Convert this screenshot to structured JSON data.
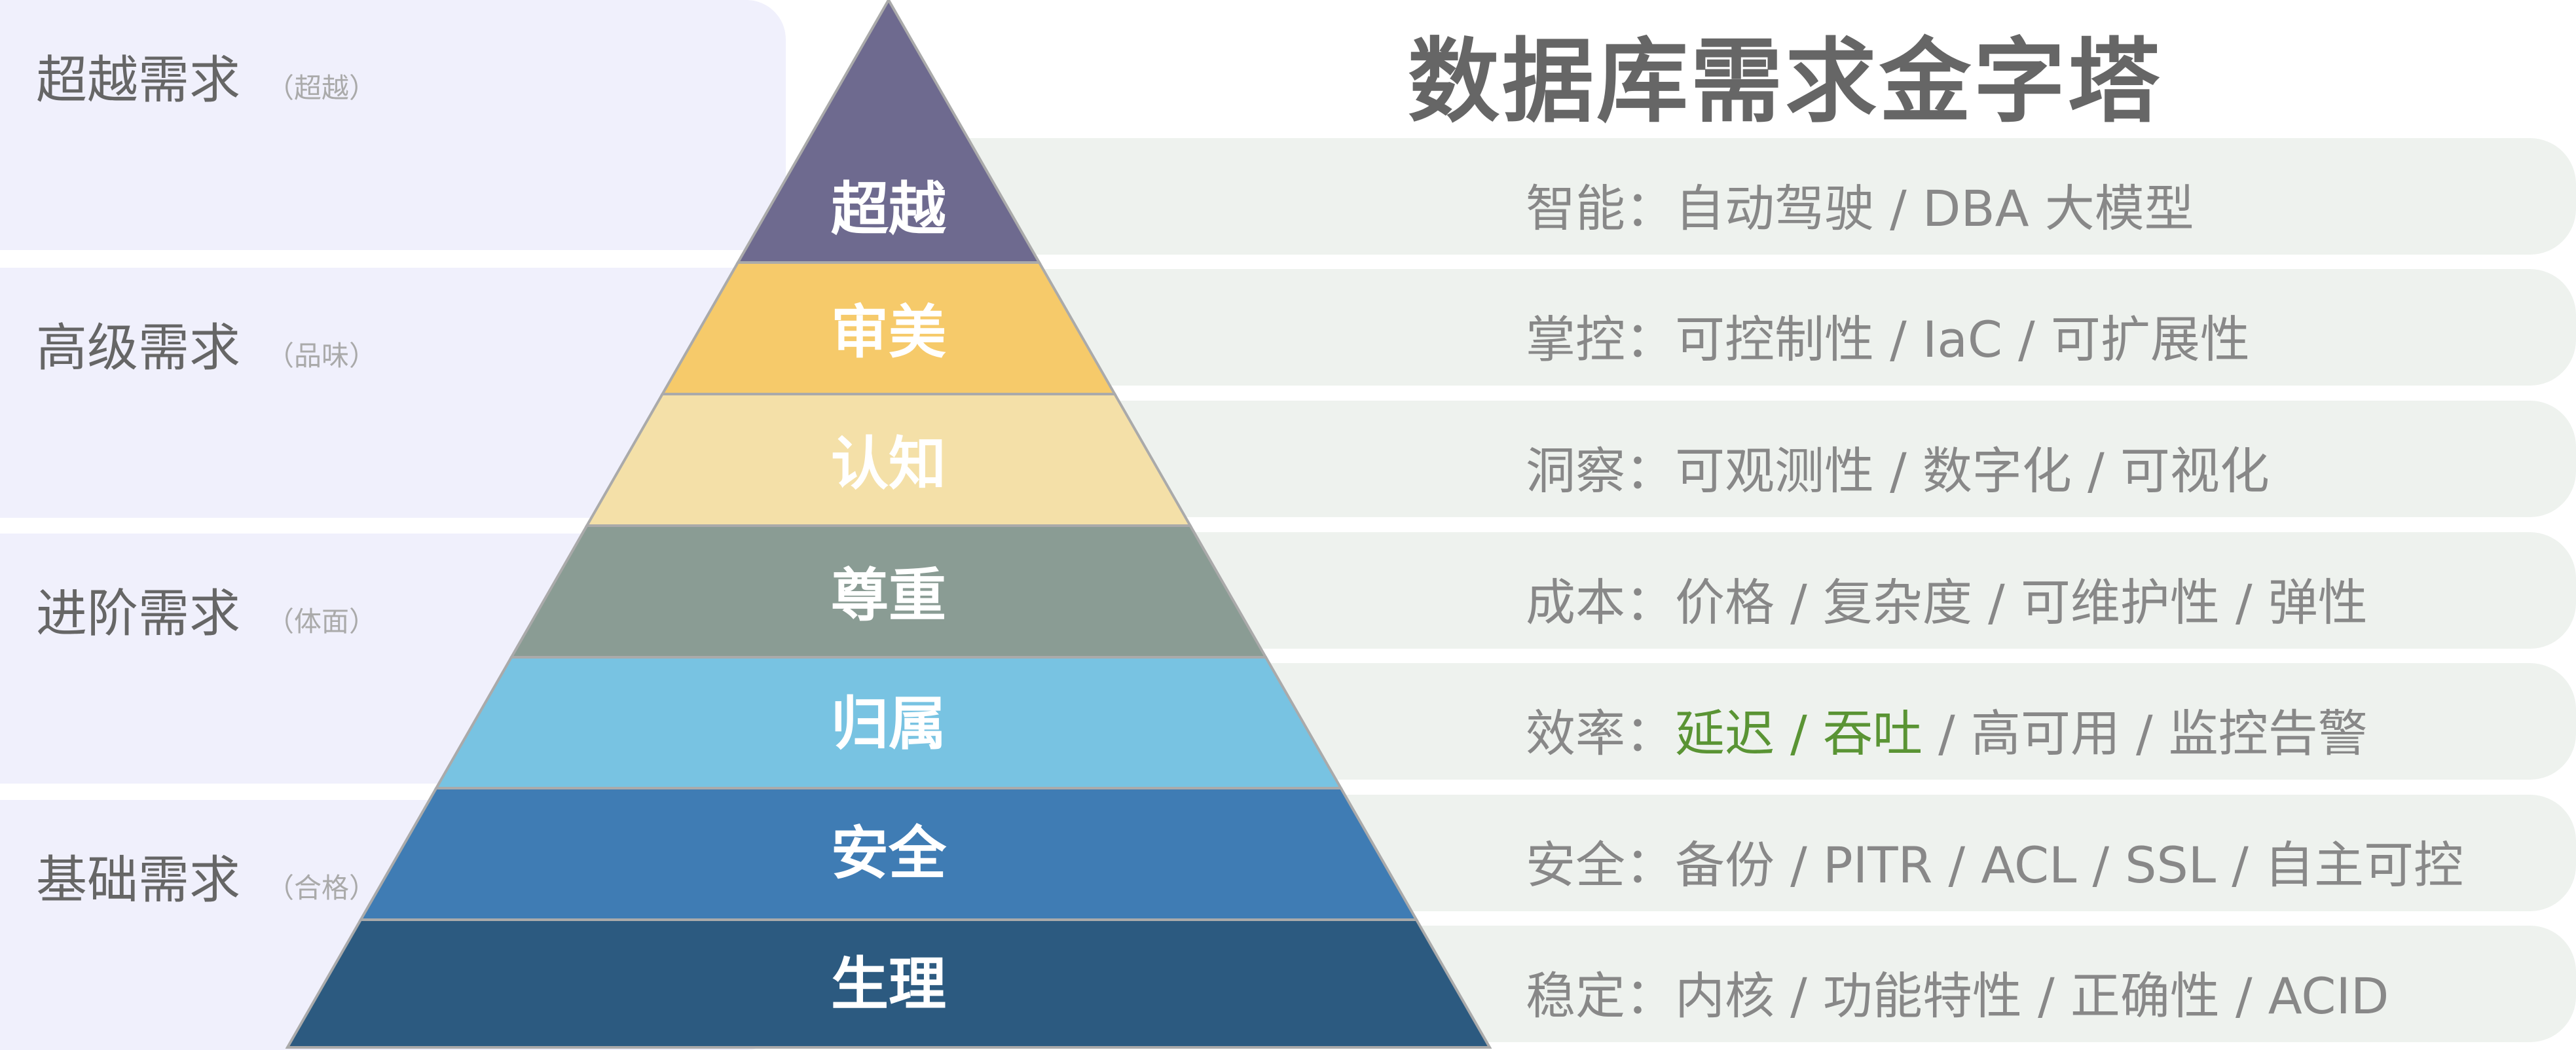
{
  "title": "数据库需求金字塔",
  "needs": [
    {
      "label": "超越需求",
      "sub": "（超越）"
    },
    {
      "label": "高级需求",
      "sub": "（品味）"
    },
    {
      "label": "进阶需求",
      "sub": "（体面）"
    },
    {
      "label": "基础需求",
      "sub": "（合格）"
    }
  ],
  "pyramid": [
    {
      "label": "超越",
      "color": "#6e6a8f"
    },
    {
      "label": "审美",
      "color": "#f6ca6a"
    },
    {
      "label": "认知",
      "color": "#f4e0a8"
    },
    {
      "label": "尊重",
      "color": "#8a9c94"
    },
    {
      "label": "归属",
      "color": "#78c3e2"
    },
    {
      "label": "安全",
      "color": "#3f7cb4"
    },
    {
      "label": "生理",
      "color": "#2c5a80"
    }
  ],
  "details": [
    {
      "head": "智能：",
      "hl": "",
      "rest": "自动驾驶 /  DBA 大模型"
    },
    {
      "head": "掌控：",
      "hl": "",
      "rest": "可控制性 / IaC / 可扩展性"
    },
    {
      "head": "洞察：",
      "hl": "",
      "rest": "可观测性 / 数字化 / 可视化"
    },
    {
      "head": "成本：",
      "hl": "",
      "rest": "价格 /  复杂度 / 可维护性 / 弹性"
    },
    {
      "head": "效率：",
      "hl": "延迟 / 吞吐",
      "rest": " / 高可用 / 监控告警"
    },
    {
      "head": "安全：",
      "hl": "",
      "rest": "备份 / PITR / ACL / SSL / 自主可控"
    },
    {
      "head": "稳定：",
      "hl": "",
      "rest": "内核 / 功能特性 / 正确性 / ACID"
    }
  ],
  "colors": {
    "highlight": "#5a9434",
    "left_box": "#f0f0fc",
    "right_box": "#eef2ee"
  }
}
